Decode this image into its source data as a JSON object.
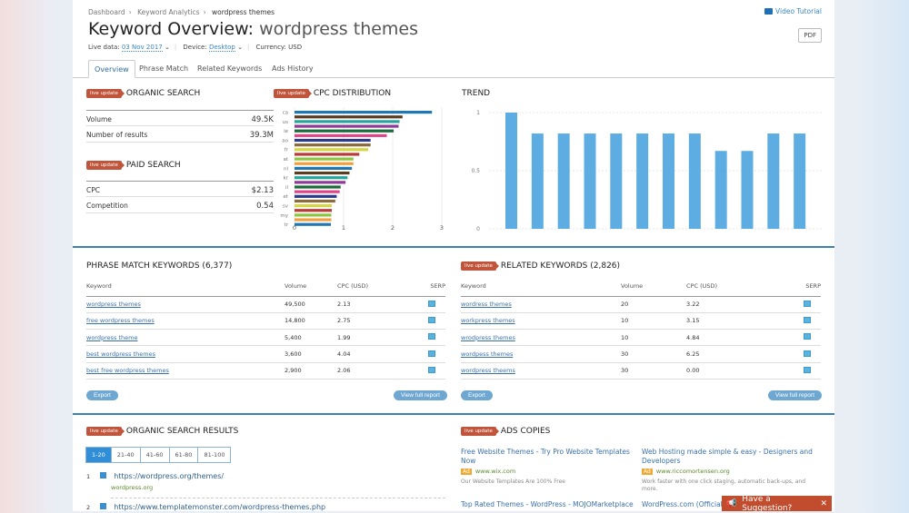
{
  "breadcrumb": [
    "Dashboard",
    "Keyword Analytics",
    "wordpress themes"
  ],
  "video_tutorial": "Video Tutorial",
  "pdf": "PDF",
  "title": {
    "prefix": "Keyword Overview:",
    "keyword": "wordpress themes"
  },
  "meta": {
    "live_label": "Live data:",
    "date": "03 Nov 2017",
    "device_label": "Device:",
    "device": "Desktop",
    "currency": "Currency: USD"
  },
  "tabs": [
    "Overview",
    "Phrase Match",
    "Related Keywords",
    "Ads History"
  ],
  "live_badge": "live update",
  "organic": {
    "title": "ORGANIC SEARCH",
    "rows": [
      {
        "label": "Volume",
        "value": "49.5K"
      },
      {
        "label": "Number of results",
        "value": "39.3M"
      }
    ]
  },
  "paid": {
    "title": "PAID SEARCH",
    "rows": [
      {
        "label": "CPC",
        "value": "$2.13"
      },
      {
        "label": "Competition",
        "value": "0.54"
      }
    ]
  },
  "chart_data": [
    {
      "type": "bar",
      "orientation": "horizontal",
      "title": "CPC DISTRIBUTION",
      "tick_labels": [
        "ca",
        "us",
        "ie",
        "ao",
        "fr",
        "at",
        "nl",
        "kr",
        "il",
        "et",
        "sv",
        "my",
        "tr"
      ],
      "values": [
        2.8,
        2.2,
        2.14,
        2.12,
        2.02,
        1.88,
        1.55,
        1.55,
        1.5,
        1.32,
        1.2,
        1.2,
        1.17,
        1.12,
        1.08,
        1.04,
        0.94,
        0.92,
        0.86,
        0.83,
        0.76,
        0.76,
        0.75,
        0.75,
        0.74
      ],
      "colors": [
        "#1f77b4",
        "#5a3e22",
        "#26a69a",
        "#8e3a9a",
        "#1b6b3a",
        "#e0458a",
        "#2c3a8a",
        "#8b6a3e",
        "#d6d640",
        "#b83a3a",
        "#8cc63e",
        "#f0a040"
      ],
      "xlim": [
        0,
        3
      ],
      "xticks": [
        "0",
        "1",
        "2",
        "3"
      ]
    },
    {
      "type": "bar",
      "title": "TREND",
      "values": [
        1,
        0.82,
        0.82,
        0.82,
        0.82,
        0.82,
        0.82,
        0.82,
        0.67,
        0.67,
        0.82,
        0.82
      ],
      "ylim": [
        0,
        1
      ],
      "yticks": [
        "0",
        "0.5",
        "1"
      ],
      "color": "#5dade2"
    }
  ],
  "phrase": {
    "title": "PHRASE MATCH KEYWORDS (6,377)",
    "headers": [
      "Keyword",
      "Volume",
      "CPC (USD)",
      "SERP"
    ],
    "rows": [
      [
        "wordpress themes",
        "49,500",
        "2.13"
      ],
      [
        "free wordpress themes",
        "14,800",
        "2.75"
      ],
      [
        "wordpress theme",
        "5,400",
        "1.99"
      ],
      [
        "best wordpress themes",
        "3,600",
        "4.04"
      ],
      [
        "best free wordpress themes",
        "2,900",
        "2.06"
      ]
    ]
  },
  "related": {
    "title": "RELATED KEYWORDS (2,826)",
    "headers": [
      "Keyword",
      "Volume",
      "CPC (USD)",
      "SERP"
    ],
    "rows": [
      [
        "wordress themes",
        "20",
        "3.22"
      ],
      [
        "workpress themes",
        "10",
        "3.15"
      ],
      [
        "wrodpress themes",
        "10",
        "4.84"
      ],
      [
        "wordpess themes",
        "30",
        "6.25"
      ],
      [
        "wordpress theems",
        "30",
        "0.00"
      ]
    ]
  },
  "export": "Export",
  "view_full": "View full report",
  "organic_results": {
    "title": "ORGANIC SEARCH RESULTS",
    "pages": [
      "1-20",
      "21-40",
      "41-60",
      "61-80",
      "81-100"
    ],
    "results": [
      {
        "n": "1",
        "url": "https://wordpress.org/themes/",
        "domain": "wordpress.org"
      },
      {
        "n": "2",
        "url": "https://www.templatemonster.com/wordpress-themes.php",
        "domain": ""
      }
    ]
  },
  "ads": {
    "title": "ADS COPIES",
    "badge": "Ad",
    "items": [
      {
        "title": "Free Website Themes - Try Pro Website Templates Now",
        "url": "www.wix.com",
        "desc": "Our Website Templates Are 100% Free"
      },
      {
        "title": "Web Hosting made simple & easy - Designers and Developers",
        "url": "www.riccomortensen.org",
        "desc": "Work faster with one click staging, automatic back-ups, and more."
      },
      {
        "title": "Top Rated Themes - WordPress - MOJOMarketplace",
        "url": "",
        "desc": ""
      },
      {
        "title": "WordPress.com (Official",
        "url": "",
        "desc": ""
      }
    ]
  },
  "suggestion": "Have a Suggestion?"
}
